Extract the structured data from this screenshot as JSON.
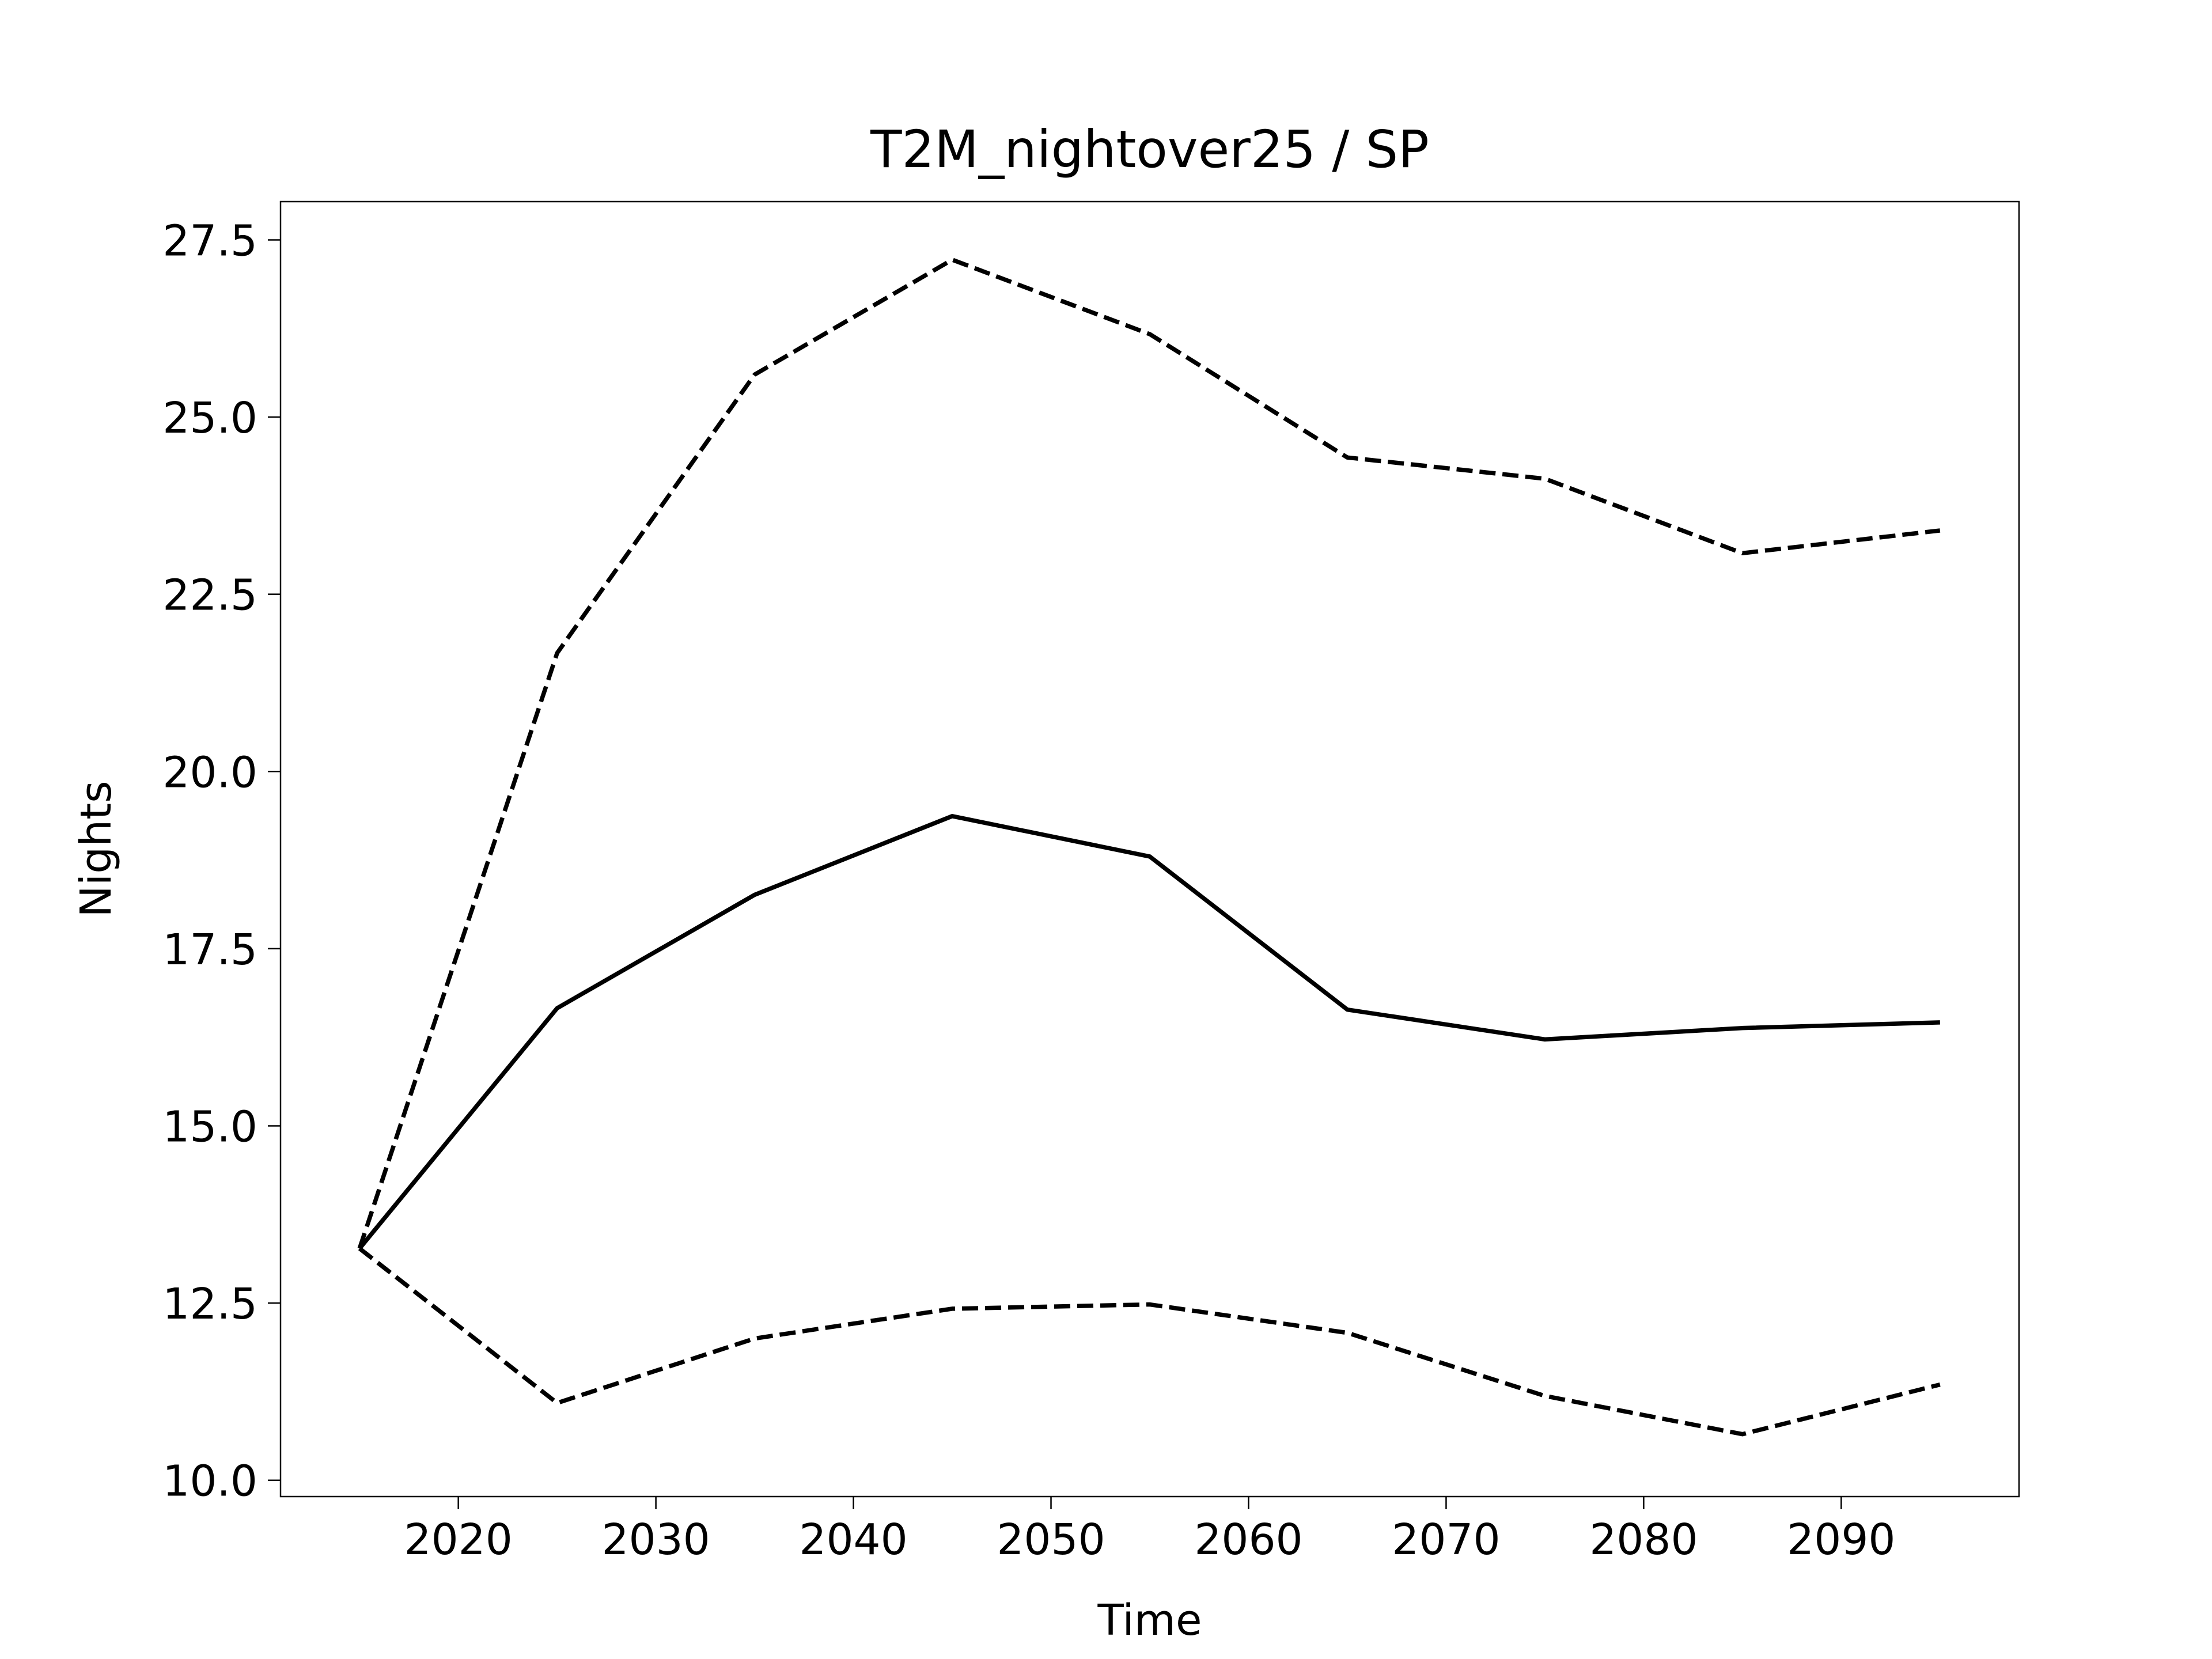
{
  "chart_data": {
    "type": "line",
    "title": "T2M_nightover25 / SP",
    "x_label": "Time",
    "y_label": "Nights",
    "x": [
      2015,
      2025,
      2035,
      2045,
      2055,
      2065,
      2075,
      2085,
      2095
    ],
    "series": [
      {
        "color": "#000000",
        "style": "solid",
        "values": [
          13.27,
          16.66,
          18.26,
          19.37,
          18.8,
          16.64,
          16.22,
          16.38,
          16.46
        ]
      },
      {
        "color": "#000000",
        "style": "dashed",
        "values": [
          13.27,
          21.67,
          25.6,
          27.22,
          26.17,
          24.43,
          24.13,
          23.08,
          23.4
        ]
      },
      {
        "color": "#000000",
        "style": "dashed",
        "values": [
          13.27,
          11.09,
          12.0,
          12.42,
          12.48,
          12.08,
          11.19,
          10.65,
          11.35
        ]
      }
    ],
    "xlim": [
      2011,
      2099
    ],
    "xticks": [
      2020,
      2030,
      2040,
      2050,
      2060,
      2070,
      2080,
      2090
    ],
    "ylim": [
      9.77,
      28.04
    ],
    "yticks": [
      {
        "value": 10,
        "label": "10.0"
      },
      12.5,
      {
        "value": 15,
        "label": "15.0"
      },
      17.5,
      {
        "value": 20,
        "label": "20.0"
      },
      22.5,
      {
        "value": 25,
        "label": "25.0"
      },
      27.5
    ],
    "grid": false
  }
}
